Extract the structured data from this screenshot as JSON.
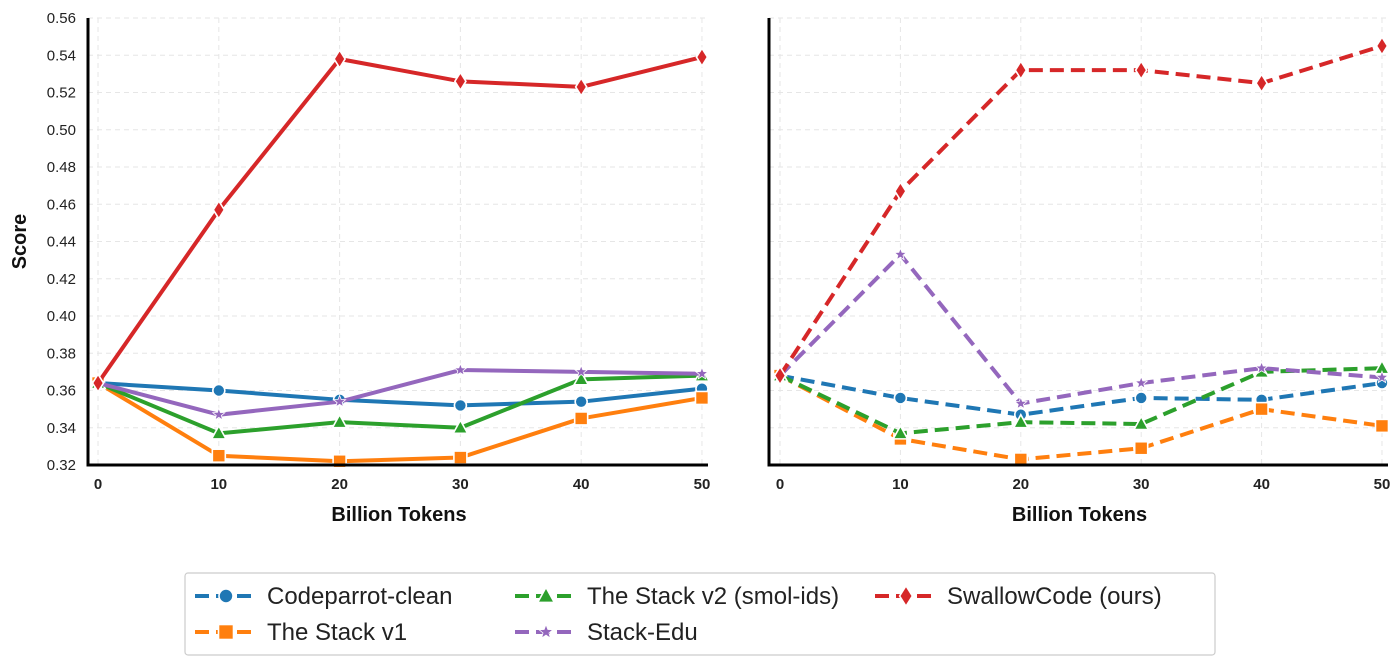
{
  "chart_data": [
    {
      "type": "line",
      "panel": "left",
      "line_style": "solid",
      "xlabel": "Billion Tokens",
      "ylabel": "Score",
      "x": [
        0,
        10,
        20,
        30,
        40,
        50
      ],
      "xticks": [
        "0",
        "10",
        "20",
        "30",
        "40",
        "50"
      ],
      "ylim": [
        0.32,
        0.56
      ],
      "yticks": [
        "0.32",
        "0.34",
        "0.36",
        "0.38",
        "0.40",
        "0.42",
        "0.44",
        "0.46",
        "0.48",
        "0.50",
        "0.52",
        "0.54",
        "0.56"
      ],
      "grid": true,
      "series": [
        {
          "name": "Codeparrot-clean",
          "color": "#1f77b4",
          "marker": "circle",
          "values": [
            0.364,
            0.36,
            0.355,
            0.352,
            0.354,
            0.361
          ]
        },
        {
          "name": "The Stack v1",
          "color": "#ff7f0e",
          "marker": "square",
          "values": [
            0.364,
            0.325,
            0.322,
            0.324,
            0.345,
            0.356
          ]
        },
        {
          "name": "The Stack v2 (smol-ids)",
          "color": "#2ca02c",
          "marker": "triangle",
          "values": [
            0.364,
            0.337,
            0.343,
            0.34,
            0.366,
            0.368
          ]
        },
        {
          "name": "Stack-Edu",
          "color": "#9467bd",
          "marker": "star",
          "values": [
            0.364,
            0.347,
            0.354,
            0.371,
            0.37,
            0.369
          ]
        },
        {
          "name": "SwallowCode (ours)",
          "color": "#d62728",
          "marker": "diamond",
          "values": [
            0.364,
            0.457,
            0.538,
            0.526,
            0.523,
            0.539
          ]
        }
      ]
    },
    {
      "type": "line",
      "panel": "right",
      "line_style": "dashed",
      "xlabel": "Billion Tokens",
      "ylabel": "",
      "x": [
        0,
        10,
        20,
        30,
        40,
        50
      ],
      "xticks": [
        "0",
        "10",
        "20",
        "30",
        "40",
        "50"
      ],
      "ylim": [
        0.32,
        0.56
      ],
      "grid": true,
      "series": [
        {
          "name": "Codeparrot-clean",
          "color": "#1f77b4",
          "marker": "circle",
          "values": [
            0.368,
            0.356,
            0.347,
            0.356,
            0.355,
            0.364
          ]
        },
        {
          "name": "The Stack v1",
          "color": "#ff7f0e",
          "marker": "square",
          "values": [
            0.368,
            0.334,
            0.323,
            0.329,
            0.35,
            0.341
          ]
        },
        {
          "name": "The Stack v2 (smol-ids)",
          "color": "#2ca02c",
          "marker": "triangle",
          "values": [
            0.368,
            0.337,
            0.343,
            0.342,
            0.37,
            0.372
          ]
        },
        {
          "name": "Stack-Edu",
          "color": "#9467bd",
          "marker": "star",
          "values": [
            0.368,
            0.433,
            0.353,
            0.364,
            0.372,
            0.367
          ]
        },
        {
          "name": "SwallowCode (ours)",
          "color": "#d62728",
          "marker": "diamond",
          "values": [
            0.368,
            0.467,
            0.532,
            0.532,
            0.525,
            0.545
          ]
        }
      ]
    }
  ],
  "legend": {
    "position": "bottom-center",
    "entries": [
      {
        "label": "Codeparrot-clean",
        "color": "#1f77b4",
        "marker": "circle"
      },
      {
        "label": "The Stack v2 (smol-ids)",
        "color": "#2ca02c",
        "marker": "triangle"
      },
      {
        "label": "SwallowCode (ours)",
        "color": "#d62728",
        "marker": "diamond"
      },
      {
        "label": "The Stack v1",
        "color": "#ff7f0e",
        "marker": "square"
      },
      {
        "label": "Stack-Edu",
        "color": "#9467bd",
        "marker": "star"
      }
    ]
  }
}
